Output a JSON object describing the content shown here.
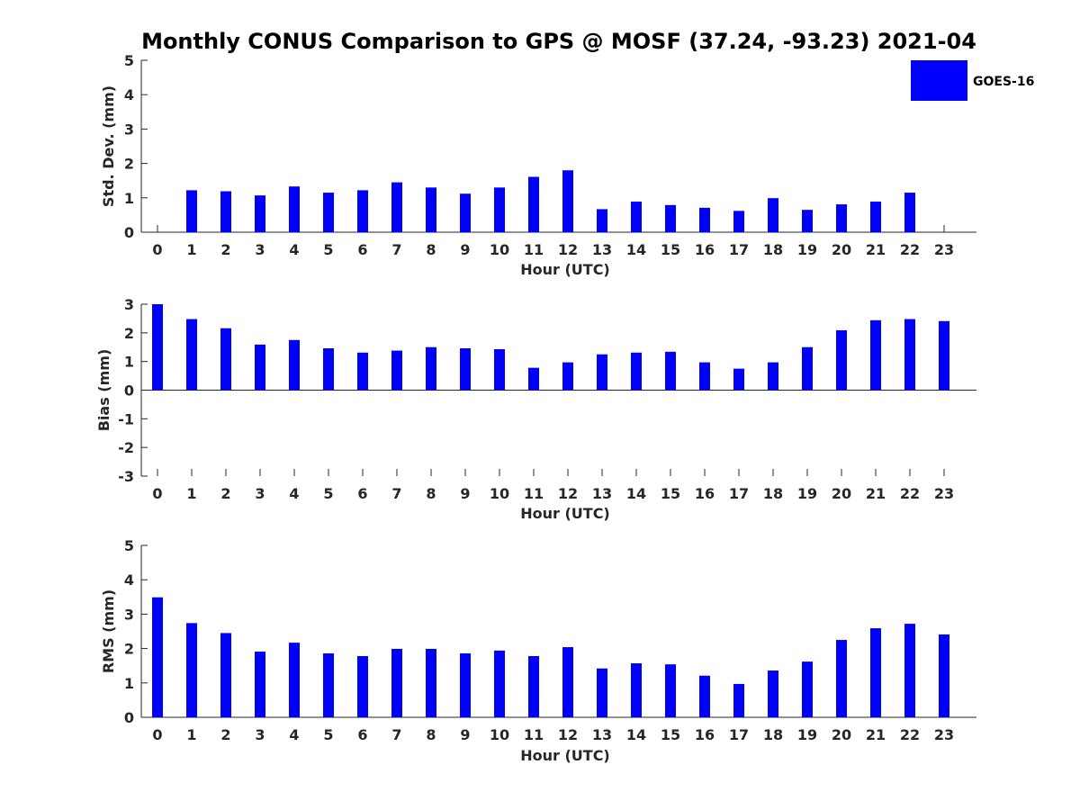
{
  "figure": {
    "title": "Monthly CONUS Comparison to GPS @ MOSF (37.24, -93.23) 2021-04",
    "legend": {
      "label": "GOES-16",
      "color": "#0000ff",
      "placement": "top-right"
    },
    "bar_color": "#0000ff"
  },
  "chart_data": [
    {
      "type": "bar",
      "categories": [
        "0",
        "1",
        "2",
        "3",
        "4",
        "5",
        "6",
        "7",
        "8",
        "9",
        "10",
        "11",
        "12",
        "13",
        "14",
        "15",
        "16",
        "17",
        "18",
        "19",
        "20",
        "21",
        "22",
        "23"
      ],
      "series": [
        {
          "name": "GOES-16",
          "values": [
            null,
            1.22,
            1.19,
            1.07,
            1.33,
            1.15,
            1.22,
            1.45,
            1.3,
            1.12,
            1.3,
            1.61,
            1.8,
            0.67,
            0.89,
            0.79,
            0.71,
            0.62,
            0.99,
            0.65,
            0.81,
            0.89,
            1.15,
            null
          ]
        }
      ],
      "xlabel": "Hour (UTC)",
      "ylabel": "Std. Dev. (mm)",
      "ylim": [
        0,
        5
      ],
      "yticks": [
        "0",
        "1",
        "2",
        "3",
        "4",
        "5"
      ],
      "grid": false
    },
    {
      "type": "bar",
      "categories": [
        "0",
        "1",
        "2",
        "3",
        "4",
        "5",
        "6",
        "7",
        "8",
        "9",
        "10",
        "11",
        "12",
        "13",
        "14",
        "15",
        "16",
        "17",
        "18",
        "19",
        "20",
        "21",
        "22",
        "23"
      ],
      "series": [
        {
          "name": "GOES-16",
          "values": [
            3.0,
            2.48,
            2.16,
            1.59,
            1.75,
            1.46,
            1.31,
            1.38,
            1.5,
            1.46,
            1.43,
            0.78,
            0.97,
            1.25,
            1.31,
            1.34,
            0.97,
            0.75,
            0.97,
            1.5,
            2.09,
            2.44,
            2.48,
            2.41
          ]
        }
      ],
      "xlabel": "Hour (UTC)",
      "ylabel": "Bias (mm)",
      "ylim": [
        -3,
        3
      ],
      "yticks": [
        "-3",
        "-2",
        "-1",
        "0",
        "1",
        "2",
        "3"
      ],
      "grid": false
    },
    {
      "type": "bar",
      "categories": [
        "0",
        "1",
        "2",
        "3",
        "4",
        "5",
        "6",
        "7",
        "8",
        "9",
        "10",
        "11",
        "12",
        "13",
        "14",
        "15",
        "16",
        "17",
        "18",
        "19",
        "20",
        "21",
        "22",
        "23"
      ],
      "series": [
        {
          "name": "GOES-16",
          "values": [
            3.49,
            2.74,
            2.45,
            1.91,
            2.17,
            1.86,
            1.78,
            1.99,
            1.99,
            1.86,
            1.94,
            1.78,
            2.04,
            1.42,
            1.57,
            1.54,
            1.21,
            0.97,
            1.36,
            1.62,
            2.25,
            2.59,
            2.72,
            2.41
          ]
        }
      ],
      "xlabel": "Hour (UTC)",
      "ylabel": "RMS (mm)",
      "ylim": [
        0,
        5
      ],
      "yticks": [
        "0",
        "1",
        "2",
        "3",
        "4",
        "5"
      ],
      "grid": false
    }
  ]
}
